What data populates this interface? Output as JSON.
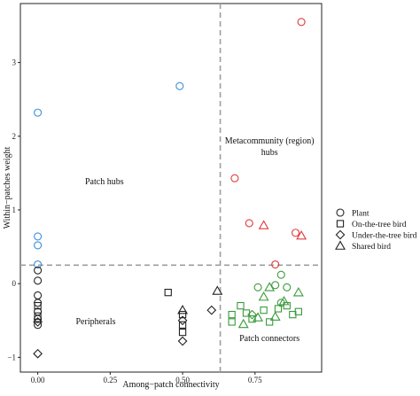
{
  "chart_data": {
    "type": "scatter",
    "title": "",
    "xlabel": "Among−patch connectivity",
    "ylabel": "Within−patches weight",
    "xlim": [
      -0.06,
      0.98
    ],
    "ylim": [
      -1.2,
      3.8
    ],
    "x_ticks": [
      {
        "value": 0.0,
        "label": "0.00"
      },
      {
        "value": 0.25,
        "label": "0.25"
      },
      {
        "value": 0.5,
        "label": "0.50"
      },
      {
        "value": 0.75,
        "label": "0.75"
      }
    ],
    "y_ticks": [
      {
        "value": -1,
        "label": "−1"
      },
      {
        "value": 0,
        "label": "0"
      },
      {
        "value": 1,
        "label": "1"
      },
      {
        "value": 2,
        "label": "2"
      },
      {
        "value": 3,
        "label": "3"
      }
    ],
    "thresholds": {
      "x": 0.63,
      "y": 0.25
    },
    "regions": [
      {
        "name": "Patch hubs",
        "lines": [
          "Patch hubs"
        ],
        "x": 0.23,
        "y": 1.35
      },
      {
        "name": "Metacommunity hubs",
        "lines": [
          "Metacommunity (region)",
          "hubs"
        ],
        "x": 0.8,
        "y": 1.9
      },
      {
        "name": "Peripherals",
        "lines": [
          "Peripherals"
        ],
        "x": 0.2,
        "y": -0.55
      },
      {
        "name": "Patch connectors",
        "lines": [
          "Patch connectors"
        ],
        "x": 0.8,
        "y": -0.78
      }
    ],
    "legend": {
      "position": "right",
      "entries": [
        {
          "label": "Plant",
          "shape": "circle"
        },
        {
          "label": "On-the-tree bird",
          "shape": "square"
        },
        {
          "label": "Under-the-tree bird",
          "shape": "diamond"
        },
        {
          "label": "Shared bird",
          "shape": "triangle"
        }
      ]
    },
    "colors": {
      "black": "#222222",
      "blue": "#3b8fd9",
      "red": "#e03a3a",
      "green": "#3a9a3a",
      "guide": "#9e9e9e"
    },
    "points": [
      {
        "x": 0.0,
        "y": 2.32,
        "shape": "circle",
        "color": "blue"
      },
      {
        "x": 0.0,
        "y": 0.64,
        "shape": "circle",
        "color": "blue"
      },
      {
        "x": 0.0,
        "y": 0.52,
        "shape": "circle",
        "color": "blue"
      },
      {
        "x": 0.0,
        "y": 0.26,
        "shape": "circle",
        "color": "blue"
      },
      {
        "x": 0.49,
        "y": 2.68,
        "shape": "circle",
        "color": "blue"
      },
      {
        "x": 0.0,
        "y": 0.18,
        "shape": "circle",
        "color": "black"
      },
      {
        "x": 0.0,
        "y": 0.04,
        "shape": "circle",
        "color": "black"
      },
      {
        "x": 0.0,
        "y": -0.16,
        "shape": "circle",
        "color": "black"
      },
      {
        "x": 0.0,
        "y": -0.26,
        "shape": "circle",
        "color": "black"
      },
      {
        "x": 0.0,
        "y": -0.38,
        "shape": "circle",
        "color": "black"
      },
      {
        "x": 0.0,
        "y": -0.48,
        "shape": "circle",
        "color": "black"
      },
      {
        "x": 0.0,
        "y": -0.56,
        "shape": "circle",
        "color": "black"
      },
      {
        "x": 0.0,
        "y": -0.3,
        "shape": "square",
        "color": "black"
      },
      {
        "x": 0.0,
        "y": -0.44,
        "shape": "square",
        "color": "black"
      },
      {
        "x": 0.0,
        "y": -0.52,
        "shape": "diamond",
        "color": "black"
      },
      {
        "x": 0.0,
        "y": -0.95,
        "shape": "diamond",
        "color": "black"
      },
      {
        "x": 0.45,
        "y": -0.12,
        "shape": "square",
        "color": "black"
      },
      {
        "x": 0.5,
        "y": -0.42,
        "shape": "square",
        "color": "black"
      },
      {
        "x": 0.5,
        "y": -0.56,
        "shape": "square",
        "color": "black"
      },
      {
        "x": 0.5,
        "y": -0.66,
        "shape": "square",
        "color": "black"
      },
      {
        "x": 0.5,
        "y": -0.36,
        "shape": "triangle",
        "color": "black"
      },
      {
        "x": 0.5,
        "y": -0.5,
        "shape": "diamond",
        "color": "black"
      },
      {
        "x": 0.5,
        "y": -0.78,
        "shape": "diamond",
        "color": "black"
      },
      {
        "x": 0.6,
        "y": -0.36,
        "shape": "diamond",
        "color": "black"
      },
      {
        "x": 0.62,
        "y": -0.1,
        "shape": "triangle",
        "color": "black"
      },
      {
        "x": 0.91,
        "y": 3.55,
        "shape": "circle",
        "color": "red"
      },
      {
        "x": 0.68,
        "y": 1.43,
        "shape": "circle",
        "color": "red"
      },
      {
        "x": 0.73,
        "y": 0.82,
        "shape": "circle",
        "color": "red"
      },
      {
        "x": 0.89,
        "y": 0.69,
        "shape": "circle",
        "color": "red"
      },
      {
        "x": 0.82,
        "y": 0.26,
        "shape": "circle",
        "color": "red"
      },
      {
        "x": 0.78,
        "y": 0.79,
        "shape": "triangle",
        "color": "red"
      },
      {
        "x": 0.91,
        "y": 0.65,
        "shape": "triangle",
        "color": "red"
      },
      {
        "x": 0.67,
        "y": -0.42,
        "shape": "square",
        "color": "green"
      },
      {
        "x": 0.67,
        "y": -0.52,
        "shape": "square",
        "color": "green"
      },
      {
        "x": 0.7,
        "y": -0.3,
        "shape": "square",
        "color": "green"
      },
      {
        "x": 0.72,
        "y": -0.4,
        "shape": "square",
        "color": "green"
      },
      {
        "x": 0.74,
        "y": -0.48,
        "shape": "square",
        "color": "green"
      },
      {
        "x": 0.78,
        "y": -0.36,
        "shape": "square",
        "color": "green"
      },
      {
        "x": 0.8,
        "y": -0.52,
        "shape": "square",
        "color": "green"
      },
      {
        "x": 0.83,
        "y": -0.34,
        "shape": "square",
        "color": "green"
      },
      {
        "x": 0.86,
        "y": -0.3,
        "shape": "square",
        "color": "green"
      },
      {
        "x": 0.88,
        "y": -0.42,
        "shape": "square",
        "color": "green"
      },
      {
        "x": 0.9,
        "y": -0.38,
        "shape": "square",
        "color": "green"
      },
      {
        "x": 0.76,
        "y": -0.05,
        "shape": "circle",
        "color": "green"
      },
      {
        "x": 0.82,
        "y": -0.02,
        "shape": "circle",
        "color": "green"
      },
      {
        "x": 0.84,
        "y": 0.12,
        "shape": "circle",
        "color": "green"
      },
      {
        "x": 0.86,
        "y": -0.05,
        "shape": "circle",
        "color": "green"
      },
      {
        "x": 0.84,
        "y": -0.26,
        "shape": "circle",
        "color": "green"
      },
      {
        "x": 0.74,
        "y": -0.42,
        "shape": "diamond",
        "color": "green"
      },
      {
        "x": 0.78,
        "y": -0.18,
        "shape": "triangle",
        "color": "green"
      },
      {
        "x": 0.8,
        "y": -0.05,
        "shape": "triangle",
        "color": "green"
      },
      {
        "x": 0.76,
        "y": -0.46,
        "shape": "triangle",
        "color": "green"
      },
      {
        "x": 0.85,
        "y": -0.24,
        "shape": "triangle",
        "color": "green"
      },
      {
        "x": 0.9,
        "y": -0.12,
        "shape": "triangle",
        "color": "green"
      },
      {
        "x": 0.82,
        "y": -0.45,
        "shape": "triangle",
        "color": "green"
      },
      {
        "x": 0.71,
        "y": -0.55,
        "shape": "triangle",
        "color": "green"
      }
    ]
  }
}
